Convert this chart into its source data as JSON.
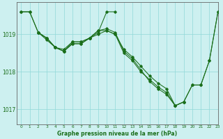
{
  "title": "Graphe pression niveau de la mer (hPa)",
  "background_color": "#cdf0f0",
  "line_color": "#1a6e1a",
  "grid_color": "#90d8d8",
  "xlim": [
    -0.5,
    23
  ],
  "ylim": [
    1016.6,
    1019.85
  ],
  "yticks": [
    1017,
    1018,
    1019
  ],
  "xticks": [
    0,
    1,
    2,
    3,
    4,
    5,
    6,
    7,
    8,
    9,
    10,
    11,
    12,
    13,
    14,
    15,
    16,
    17,
    18,
    19,
    20,
    21,
    22,
    23
  ],
  "series1": [
    [
      0,
      1019.6
    ],
    [
      1,
      1019.6
    ],
    [
      2,
      1019.05
    ],
    [
      3,
      1018.9
    ],
    [
      4,
      1018.65
    ],
    [
      5,
      1018.6
    ],
    [
      6,
      1018.8
    ],
    [
      7,
      1018.8
    ],
    [
      8,
      1018.9
    ],
    [
      9,
      1019.05
    ],
    [
      10,
      1019.6
    ],
    [
      11,
      1019.6
    ]
  ],
  "series2": [
    [
      2,
      1019.05
    ],
    [
      3,
      1018.9
    ],
    [
      4,
      1018.65
    ],
    [
      5,
      1018.55
    ],
    [
      6,
      1018.75
    ],
    [
      7,
      1018.75
    ],
    [
      8,
      1018.9
    ],
    [
      9,
      1019.1
    ],
    [
      10,
      1019.15
    ],
    [
      11,
      1019.05
    ],
    [
      12,
      1018.55
    ],
    [
      13,
      1018.35
    ],
    [
      14,
      1018.05
    ],
    [
      15,
      1017.75
    ],
    [
      16,
      1017.55
    ],
    [
      17,
      1017.4
    ],
    [
      18,
      1017.1
    ],
    [
      19,
      1017.2
    ]
  ],
  "series3": [
    [
      2,
      1019.05
    ],
    [
      3,
      1018.85
    ],
    [
      4,
      1018.65
    ],
    [
      5,
      1018.55
    ],
    [
      6,
      1018.75
    ],
    [
      7,
      1018.75
    ],
    [
      8,
      1018.9
    ],
    [
      9,
      1019.1
    ],
    [
      10,
      1019.1
    ],
    [
      11,
      1019.0
    ],
    [
      12,
      1018.6
    ],
    [
      13,
      1018.4
    ],
    [
      14,
      1018.15
    ],
    [
      15,
      1017.9
    ],
    [
      16,
      1017.7
    ],
    [
      17,
      1017.55
    ],
    [
      18,
      1017.1
    ],
    [
      19,
      1017.2
    ],
    [
      20,
      1017.65
    ],
    [
      21,
      1017.65
    ],
    [
      22,
      1018.3
    ],
    [
      23,
      1019.6
    ]
  ],
  "series4": [
    [
      0,
      1019.6
    ],
    [
      1,
      1019.6
    ],
    [
      2,
      1019.05
    ],
    [
      3,
      1018.9
    ],
    [
      4,
      1018.65
    ],
    [
      5,
      1018.55
    ],
    [
      6,
      1018.8
    ],
    [
      7,
      1018.8
    ],
    [
      8,
      1018.9
    ],
    [
      9,
      1019.0
    ],
    [
      10,
      1019.1
    ],
    [
      11,
      1019.0
    ],
    [
      12,
      1018.5
    ],
    [
      13,
      1018.3
    ],
    [
      14,
      1018.0
    ],
    [
      15,
      1017.8
    ],
    [
      16,
      1017.6
    ],
    [
      17,
      1017.45
    ],
    [
      18,
      1017.1
    ],
    [
      19,
      1017.2
    ],
    [
      20,
      1017.65
    ],
    [
      21,
      1017.65
    ],
    [
      22,
      1018.3
    ],
    [
      23,
      1019.6
    ]
  ]
}
